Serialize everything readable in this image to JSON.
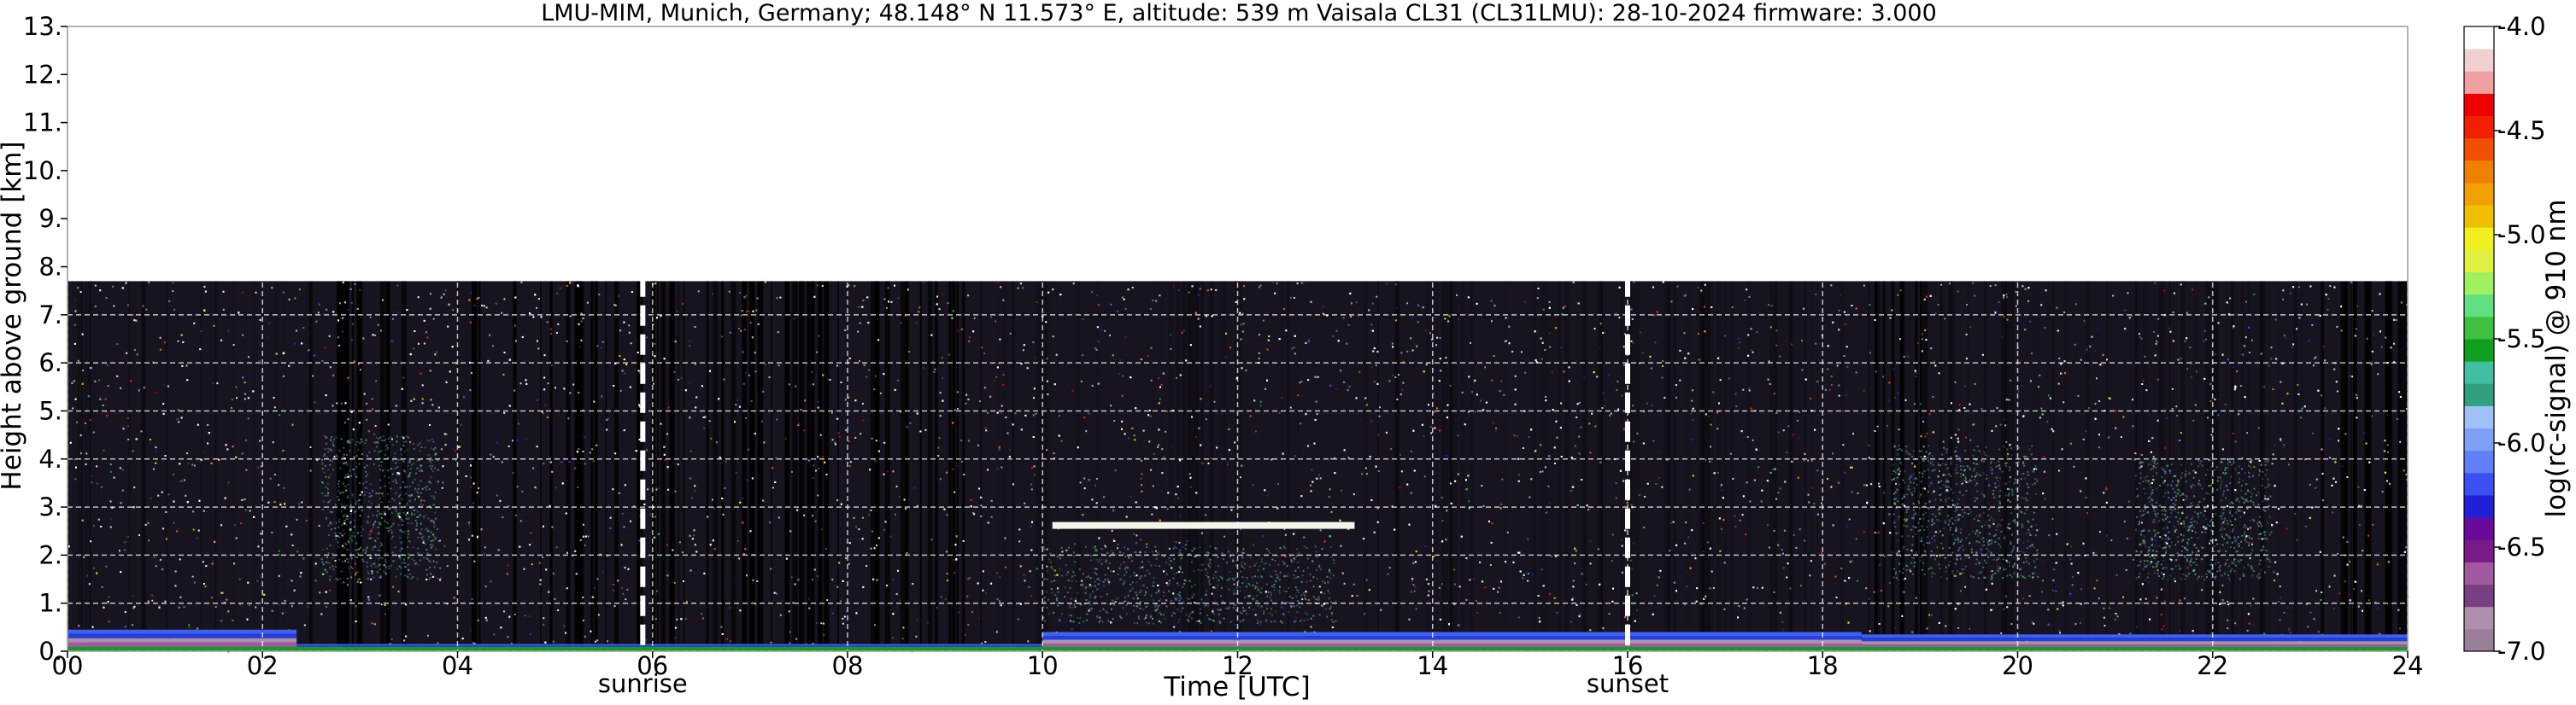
{
  "title": "LMU-MIM, Munich, Germany; 48.148° N 11.573° E, altitude: 539 m    Vaisala CL31 (CL31LMU): 28-10-2024    firmware: 3.000",
  "chart_data": {
    "type": "heatmap",
    "title": "LMU-MIM, Munich, Germany; 48.148° N 11.573° E, altitude: 539 m    Vaisala CL31 (CL31LMU): 28-10-2024    firmware: 3.000",
    "xlabel": "Time [UTC]",
    "ylabel": "Height above ground [km]",
    "xlim": [
      0,
      24
    ],
    "ylim": [
      0,
      13
    ],
    "x_ticks": [
      "00",
      "02",
      "04",
      "06",
      "08",
      "10",
      "12",
      "14",
      "16",
      "18",
      "20",
      "22",
      "24"
    ],
    "y_ticks": [
      "0.",
      "1.",
      "2.",
      "3.",
      "4.",
      "5.",
      "6.",
      "7.",
      "8.",
      "9.",
      "10.",
      "11.",
      "12.",
      "13."
    ],
    "grid": true,
    "signal_top_km": 7.7,
    "markers": [
      {
        "label": "sunrise",
        "time": 5.9
      },
      {
        "label": "sunset",
        "time": 16.0
      }
    ],
    "cloud_layers": [
      {
        "start": 10.1,
        "end": 13.2,
        "height_km": 2.6
      }
    ],
    "aerosol_layer": [
      {
        "start": 0.0,
        "end": 2.35,
        "top_km": 0.45
      },
      {
        "start": 2.35,
        "end": 10.0,
        "top_km": 0.15
      },
      {
        "start": 10.0,
        "end": 18.4,
        "top_km": 0.4
      },
      {
        "start": 18.4,
        "end": 24.0,
        "top_km": 0.35
      }
    ],
    "colorbar": {
      "label": "log(rc-signal) @ 910 nm",
      "range": [
        -7.0,
        -4.0
      ],
      "ticks": [
        "-4.0",
        "-4.5",
        "-5.0",
        "-5.5",
        "-6.0",
        "-6.5",
        "-7.0"
      ],
      "colors": [
        "#9a7f98",
        "#ae8fac",
        "#7a3f82",
        "#a05aa0",
        "#7a1a8a",
        "#6a0a9a",
        "#2020d8",
        "#3a50f0",
        "#6080f8",
        "#80a0f8",
        "#a0c0f8",
        "#30a080",
        "#40c0a0",
        "#10a020",
        "#40c040",
        "#60e080",
        "#a0f060",
        "#e0f040",
        "#f0f020",
        "#f0c000",
        "#f0a000",
        "#f08000",
        "#f05000",
        "#f02000",
        "#f00000",
        "#f0a0a0",
        "#f0d0d0",
        "#ffffff"
      ]
    }
  }
}
